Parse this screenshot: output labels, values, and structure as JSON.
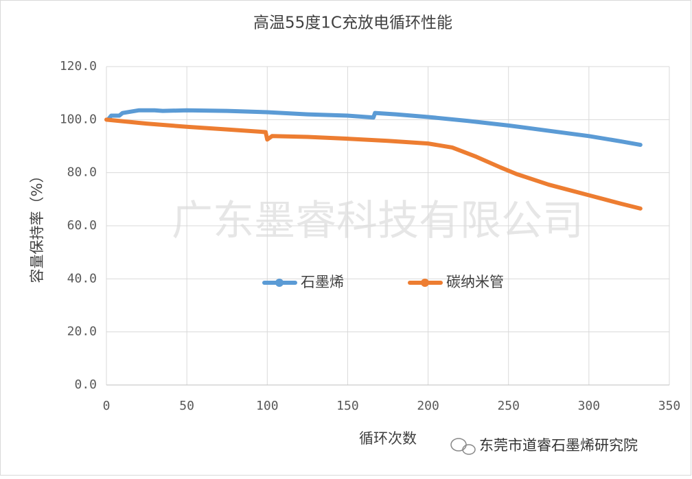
{
  "chart_data": {
    "type": "line",
    "title": "高温55度1C充放电循环性能",
    "x_label": "循环次数",
    "y_label": "容量保持率（%）",
    "watermark": "广东墨睿科技有限公司",
    "source": "东莞市道睿石墨烯研究院",
    "xlim": [
      0,
      350
    ],
    "xticks": [
      0,
      50,
      100,
      150,
      200,
      250,
      300,
      350
    ],
    "ylim": [
      0,
      120
    ],
    "yticks": [
      {
        "value": 0,
        "label": "0.0"
      },
      {
        "value": 20,
        "label": "20.0"
      },
      {
        "value": 40,
        "label": "40.0"
      },
      {
        "value": 60,
        "label": "60.0"
      },
      {
        "value": 80,
        "label": "80.0"
      },
      {
        "value": 100,
        "label": "100.0"
      },
      {
        "value": 120,
        "label": "120.0"
      }
    ],
    "grid": true,
    "legend": "center",
    "series": [
      {
        "name": "石墨烯",
        "color": "#5b9bd5",
        "x": [
          1,
          3,
          8,
          10,
          20,
          30,
          35,
          50,
          75,
          100,
          125,
          150,
          166,
          167,
          180,
          200,
          225,
          250,
          275,
          300,
          320,
          332
        ],
        "values": [
          100,
          101.5,
          101.5,
          102.5,
          103.5,
          103.5,
          103.3,
          103.5,
          103.3,
          102.8,
          102,
          101.5,
          100.8,
          102.5,
          102,
          101,
          99.5,
          97.8,
          95.8,
          93.8,
          91.8,
          90.5
        ]
      },
      {
        "name": "碳纳米管",
        "color": "#ed7d31",
        "x": [
          0,
          25,
          50,
          75,
          99,
          100,
          103,
          125,
          150,
          175,
          200,
          215,
          230,
          245,
          255,
          275,
          300,
          320,
          332
        ],
        "values": [
          100,
          98.5,
          97.3,
          96.3,
          95.3,
          92.5,
          93.8,
          93.5,
          92.8,
          92,
          91,
          89.5,
          86,
          82,
          79.5,
          75.5,
          71.5,
          68.3,
          66.5
        ]
      }
    ]
  }
}
